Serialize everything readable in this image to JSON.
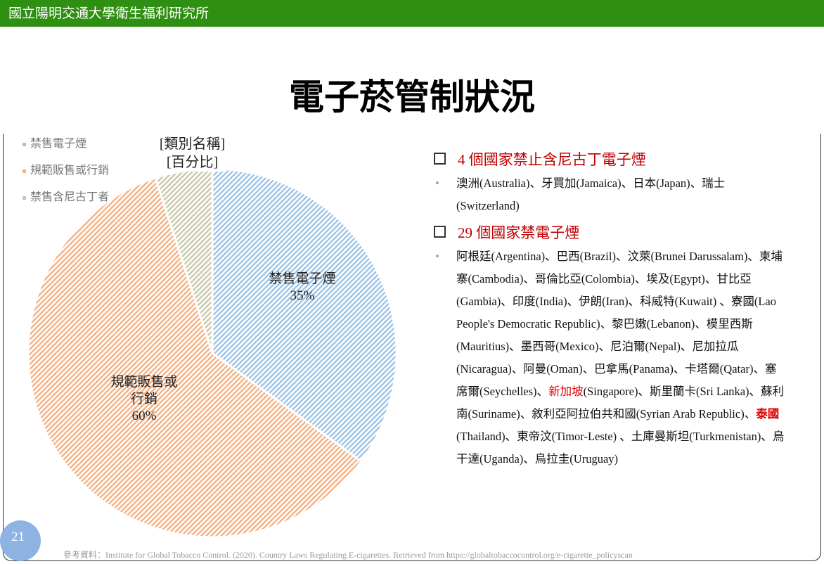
{
  "header": {
    "institution": "國立陽明交通大學衛生福利研究所"
  },
  "title": "電子菸管制狀況",
  "chart_data": {
    "type": "pie",
    "categories": [
      "禁售電子煙",
      "規範販售或行銷",
      "禁售含尼古丁者"
    ],
    "values": [
      35,
      60,
      5
    ],
    "value_labels": [
      "35%",
      "60%",
      null
    ],
    "colors": [
      "#9dc3e6",
      "#f4b183",
      "#c9c9a8"
    ],
    "placeholder_label": [
      "[類別名稱]",
      "[百分比]"
    ],
    "legend": "top-left"
  },
  "sections": [
    {
      "heading": "4 個國家禁止含尼古丁電子煙",
      "body": [
        "澳洲(Australia)、牙買加(Jamaica)、日本(Japan)、瑞士 (Switzerland)"
      ]
    },
    {
      "heading": "29 個國家禁電子煙",
      "body": [
        "阿根廷(Argentina)、巴西(Brazil)、汶萊(Brunei Darussalam)、柬埔寨(Cambodia)、哥倫比亞(Colombia)、埃及(Egypt)、甘比亞(Gambia)、印度(India)、伊朗(Iran)、科威特(Kuwait) 、寮國(Lao People's Democratic Republic)、黎巴嫩(Lebanon)、模里西斯(Mauritius)、墨西哥(Mexico)、尼泊爾(Nepal)、尼加拉瓜(Nicaragua)、阿曼(Oman)、巴拿馬(Panama)、卡塔爾(Qatar)、塞席爾(Seychelles)、",
        "新加坡",
        "(Singapore)、斯里蘭卡(Sri Lanka)、蘇利南(Suriname)、敘利亞阿拉伯共和國(Syrian Arab Republic)、",
        "泰國",
        "(Thailand)、東帝汶(Timor-Leste) 、土庫曼斯坦(Turkmenistan)、烏干達(Uganda)、烏拉圭(Uruguay)"
      ]
    }
  ],
  "page_number": "21",
  "footer": "參考資料：Institute for Global Tobacco Control. (2020). Country Laws Regulating E-cigarettes. Retrieved from https://globaltobaccocontrol.org/e-cigarette_policyscan"
}
